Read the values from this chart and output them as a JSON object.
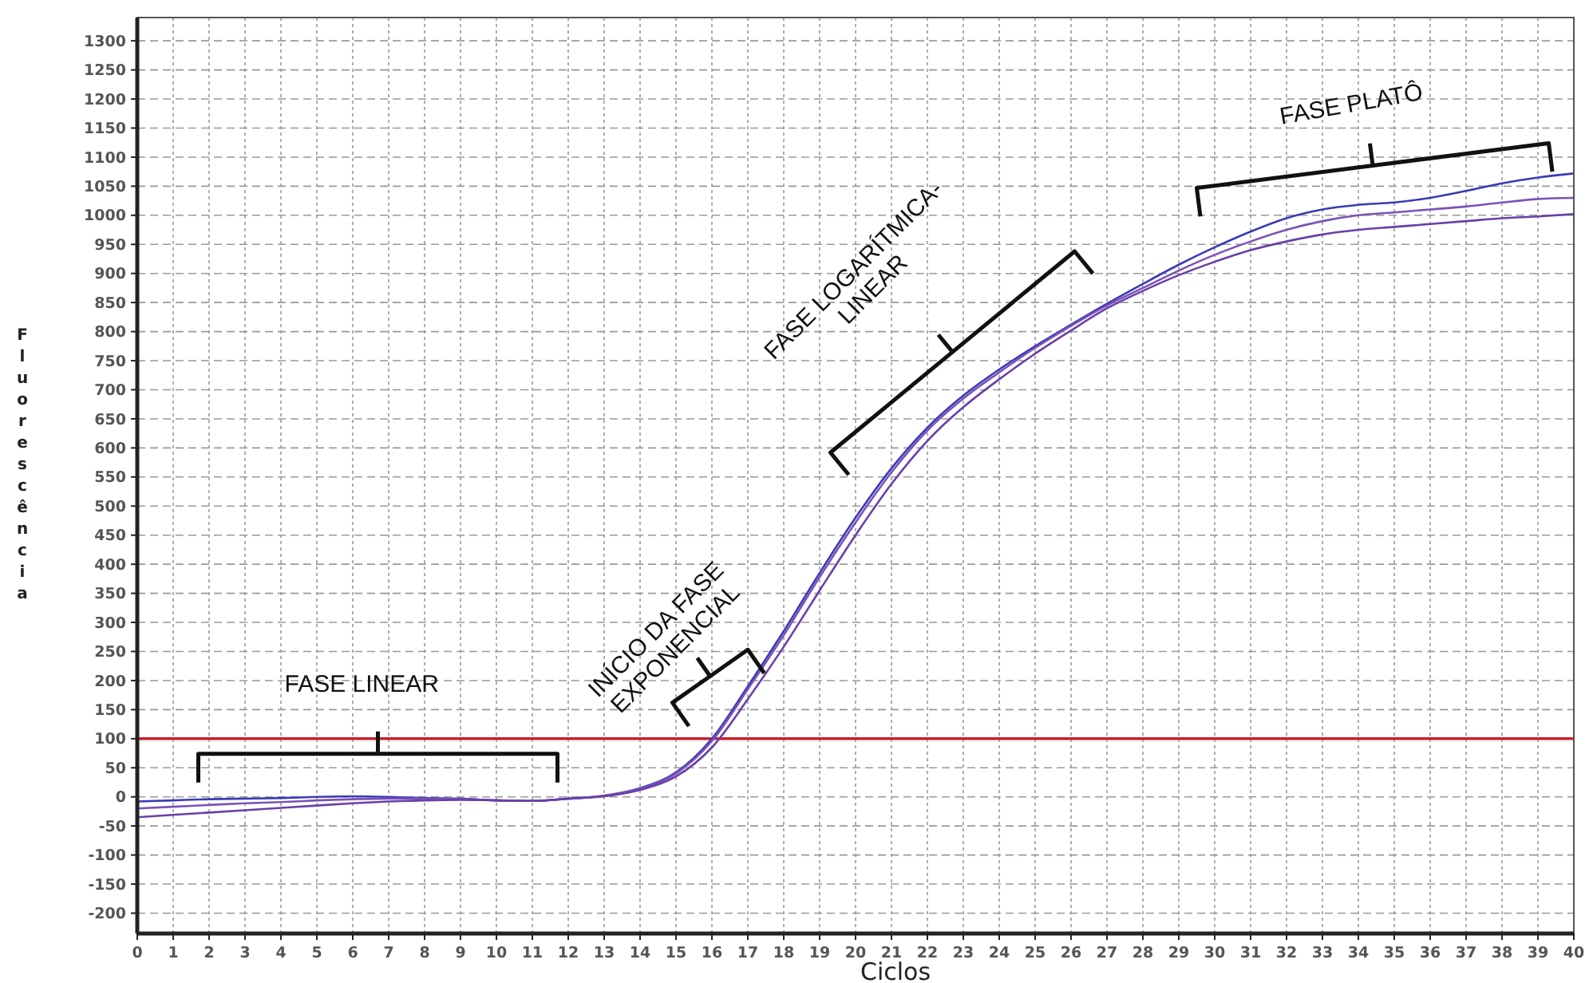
{
  "chart_data": {
    "type": "line",
    "xlabel": "Ciclos",
    "ylabel": "Fluorescência",
    "xlim": [
      0,
      40
    ],
    "xticks": [
      0,
      1,
      2,
      3,
      4,
      5,
      6,
      7,
      8,
      9,
      10,
      11,
      12,
      13,
      14,
      15,
      16,
      17,
      18,
      19,
      20,
      21,
      22,
      23,
      24,
      25,
      26,
      27,
      28,
      29,
      30,
      31,
      32,
      33,
      34,
      35,
      36,
      37,
      38,
      39,
      40
    ],
    "ylim": [
      -235,
      1340
    ],
    "yticks": [
      -200,
      -150,
      -100,
      -50,
      0,
      50,
      100,
      150,
      200,
      250,
      300,
      350,
      400,
      450,
      500,
      550,
      600,
      650,
      700,
      750,
      800,
      850,
      900,
      950,
      1000,
      1050,
      1100,
      1150,
      1200,
      1250,
      1300
    ],
    "grid": true,
    "marker": "none",
    "line_style": "solid",
    "x": [
      0,
      1,
      2,
      3,
      4,
      5,
      6,
      7,
      8,
      9,
      10,
      11,
      12,
      13,
      14,
      15,
      16,
      17,
      18,
      19,
      20,
      21,
      22,
      23,
      24,
      25,
      26,
      27,
      28,
      29,
      30,
      31,
      32,
      33,
      34,
      35,
      36,
      37,
      38,
      39,
      40
    ],
    "series": [
      {
        "color": "#3a3ab8",
        "values": [
          -8,
          -6,
          -4,
          -3,
          -2,
          0,
          1,
          0,
          -2,
          -3,
          -6,
          -7,
          -3,
          2,
          15,
          42,
          100,
          190,
          285,
          385,
          480,
          565,
          635,
          690,
          735,
          775,
          812,
          848,
          882,
          915,
          945,
          972,
          995,
          1010,
          1018,
          1022,
          1030,
          1042,
          1055,
          1065,
          1072
        ]
      },
      {
        "color": "#7b52b8",
        "values": [
          -20,
          -17,
          -14,
          -11,
          -9,
          -6,
          -4,
          -3,
          -3,
          -4,
          -6,
          -7,
          -3,
          2,
          14,
          40,
          96,
          185,
          278,
          378,
          472,
          558,
          630,
          685,
          730,
          772,
          810,
          845,
          875,
          905,
          932,
          955,
          975,
          990,
          1000,
          1005,
          1010,
          1015,
          1022,
          1028,
          1030
        ]
      },
      {
        "color": "#6a3fa8",
        "values": [
          -35,
          -31,
          -27,
          -23,
          -19,
          -15,
          -11,
          -8,
          -6,
          -5,
          -6,
          -7,
          -3,
          1,
          12,
          35,
          85,
          168,
          258,
          355,
          450,
          538,
          612,
          670,
          718,
          762,
          802,
          840,
          870,
          897,
          920,
          940,
          955,
          967,
          975,
          980,
          985,
          990,
          995,
          998,
          1002
        ]
      }
    ],
    "ref_lines": [
      {
        "axis": "y",
        "value": 100,
        "color": "#c8202a",
        "line_style": "solid"
      }
    ],
    "annotations": [
      "FASE LINEAR",
      "INÍCIO DA FASE\nEXPONENCIAL",
      "FASE LOGARÍTMICA-\nLINEAR",
      "FASE PLATÔ"
    ]
  }
}
